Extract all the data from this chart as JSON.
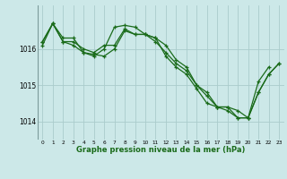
{
  "background_color": "#cce8e8",
  "plot_bg_color": "#cce8e8",
  "grid_color": "#aacccc",
  "line_color": "#1a6b1a",
  "marker_color": "#1a6b1a",
  "title": "Graphe pression niveau de la mer (hPa)",
  "xlim": [
    -0.5,
    23.5
  ],
  "ylim": [
    1013.5,
    1017.2
  ],
  "yticks": [
    1014,
    1015,
    1016
  ],
  "xticks": [
    0,
    1,
    2,
    3,
    4,
    5,
    6,
    7,
    8,
    9,
    10,
    11,
    12,
    13,
    14,
    15,
    16,
    17,
    18,
    19,
    20,
    21,
    22,
    23
  ],
  "series": [
    [
      1016.2,
      1016.7,
      1016.3,
      1016.3,
      1015.9,
      1015.85,
      1015.8,
      1016.0,
      1016.5,
      1016.4,
      1016.4,
      1016.3,
      1015.8,
      1015.5,
      1015.3,
      1014.9,
      1014.5,
      1014.4,
      1014.4,
      1014.1,
      1014.1,
      1015.1,
      1015.5,
      null
    ],
    [
      1016.2,
      1016.7,
      1016.2,
      1016.2,
      1016.0,
      1015.9,
      1016.1,
      1016.1,
      1016.55,
      1016.4,
      1016.4,
      1016.3,
      1016.1,
      1015.7,
      1015.5,
      1015.0,
      1014.7,
      1014.4,
      1014.4,
      1014.3,
      1014.1,
      1014.8,
      1015.3,
      1015.6
    ],
    [
      1016.1,
      1016.7,
      1016.2,
      1016.1,
      1015.9,
      1015.8,
      1016.0,
      1016.6,
      1016.65,
      1016.6,
      1016.4,
      1016.2,
      1015.9,
      1015.6,
      1015.4,
      1015.0,
      1014.8,
      1014.4,
      1014.3,
      1014.1,
      1014.1,
      1014.8,
      1015.3,
      1015.6
    ]
  ]
}
